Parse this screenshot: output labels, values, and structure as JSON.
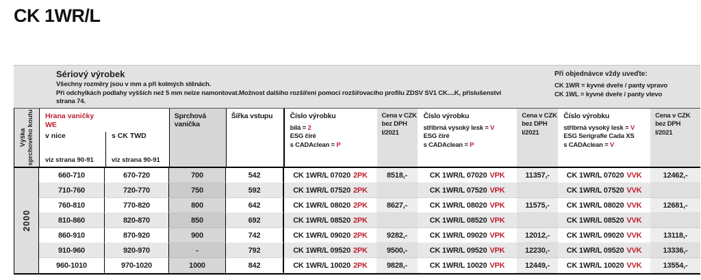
{
  "page": {
    "title": "CK 1WR/L"
  },
  "colors": {
    "accent_red": "#bf1e2e",
    "band_gray": "#e2e2e2",
    "cell_gray": "#e0e0e0"
  },
  "info": {
    "left": {
      "heading": "Sériový výrobek",
      "line1": "Všechny rozměry jsou v mm a při kolmých stěnách.",
      "line2": "Při odchylkách podlahy vyšších než 5 mm nelze namontovat.Možnost dalšího rozšíření pomoci rozšiřovacího profilu ZDSV SV1 CK....K, příslušenství",
      "line3": "strana 74."
    },
    "right": {
      "heading": "Při objednávce vždy uveďte:",
      "line1": "CK 1WR = kyvné dveře / panty vpravo",
      "line2": "CK 1WL = kyvné dveře / panty vlevo"
    }
  },
  "table": {
    "header": {
      "height_line1": "Výška",
      "height_line2": "sprchového koutu",
      "edge": {
        "title1": "Hrana vaničky",
        "title2": "WE",
        "sub1": "v nice",
        "sub2": "s CK TWD",
        "ref1": "viz strana 90-91",
        "ref2": "viz strana 90-91"
      },
      "tray": "Sprchová vanička",
      "entry": "Šířka vstupu",
      "product_white": {
        "title": "Číslo výrobku",
        "l1a": "bílá = ",
        "l1b": "2",
        "l2": "ESG čiré",
        "l3a": "s CADAclean = ",
        "l3b": "P"
      },
      "product_silver": {
        "title": "Číslo výrobku",
        "l1a": "stříbrná vysoký lesk = ",
        "l1b": "V",
        "l2": "ESG čiré",
        "l3a": "s CADAclean = ",
        "l3b": "P"
      },
      "product_seri": {
        "title": "Číslo výrobku",
        "l1a": "stříbrná vysoký lesk = ",
        "l1b": "V",
        "l2": "ESG Serigrafie Cada XS",
        "l3a": "s CADAclean = ",
        "l3b": "V"
      },
      "price": {
        "l1": "Cena v CZK",
        "l2": "bez DPH",
        "l3": "I/2021"
      }
    },
    "height_value": "2000",
    "rows": [
      {
        "niche": "660-710",
        "twd": "670-720",
        "tray": "700",
        "entry": "542",
        "code_white": "CK 1WR/L 07020",
        "sfx_white": "2PK",
        "price_white": "8518,-",
        "code_silver": "CK 1WR/L 07020",
        "sfx_silver": "VPK",
        "price_silver": "11357,-",
        "code_seri": "CK 1WR/L 07020",
        "sfx_seri": "VVK",
        "price_seri": "12462,-"
      },
      {
        "niche": "710-760",
        "twd": "720-770",
        "tray": "750",
        "entry": "592",
        "code_white": "CK 1WR/L 07520",
        "sfx_white": "2PK",
        "price_white": "",
        "code_silver": "CK 1WR/L 07520",
        "sfx_silver": "VPK",
        "price_silver": "",
        "code_seri": "CK 1WR/L 07520",
        "sfx_seri": "VVK",
        "price_seri": ""
      },
      {
        "niche": "760-810",
        "twd": "770-820",
        "tray": "800",
        "entry": "642",
        "code_white": "CK 1WR/L 08020",
        "sfx_white": "2PK",
        "price_white": "8627,-",
        "code_silver": "CK 1WR/L 08020",
        "sfx_silver": "VPK",
        "price_silver": "11575,-",
        "code_seri": "CK 1WR/L 08020",
        "sfx_seri": "VVK",
        "price_seri": "12681,-"
      },
      {
        "niche": "810-860",
        "twd": "820-870",
        "tray": "850",
        "entry": "692",
        "code_white": "CK 1WR/L 08520",
        "sfx_white": "2PK",
        "price_white": "",
        "code_silver": "CK 1WR/L 08520",
        "sfx_silver": "VPK",
        "price_silver": "",
        "code_seri": "CK 1WR/L 08520",
        "sfx_seri": "VVK",
        "price_seri": ""
      },
      {
        "niche": "860-910",
        "twd": "870-920",
        "tray": "900",
        "entry": "742",
        "code_white": "CK 1WR/L 09020",
        "sfx_white": "2PK",
        "price_white": "9282,-",
        "code_silver": "CK 1WR/L 09020",
        "sfx_silver": "VPK",
        "price_silver": "12012,-",
        "code_seri": "CK 1WR/L 09020",
        "sfx_seri": "VVK",
        "price_seri": "13118,-"
      },
      {
        "niche": "910-960",
        "twd": "920-970",
        "tray": "-",
        "entry": "792",
        "code_white": "CK 1WR/L 09520",
        "sfx_white": "2PK",
        "price_white": "9500,-",
        "code_silver": "CK 1WR/L 09520",
        "sfx_silver": "VPK",
        "price_silver": "12230,-",
        "code_seri": "CK 1WR/L 09520",
        "sfx_seri": "VVK",
        "price_seri": "13336,-"
      },
      {
        "niche": "960-1010",
        "twd": "970-1020",
        "tray": "1000",
        "entry": "842",
        "code_white": "CK 1WR/L 10020",
        "sfx_white": "2PK",
        "price_white": "9828,-",
        "code_silver": "CK 1WR/L 10020",
        "sfx_silver": "VPK",
        "price_silver": "12449,-",
        "code_seri": "CK 1WR/L 10020",
        "sfx_seri": "VVK",
        "price_seri": "13554,-"
      }
    ]
  }
}
